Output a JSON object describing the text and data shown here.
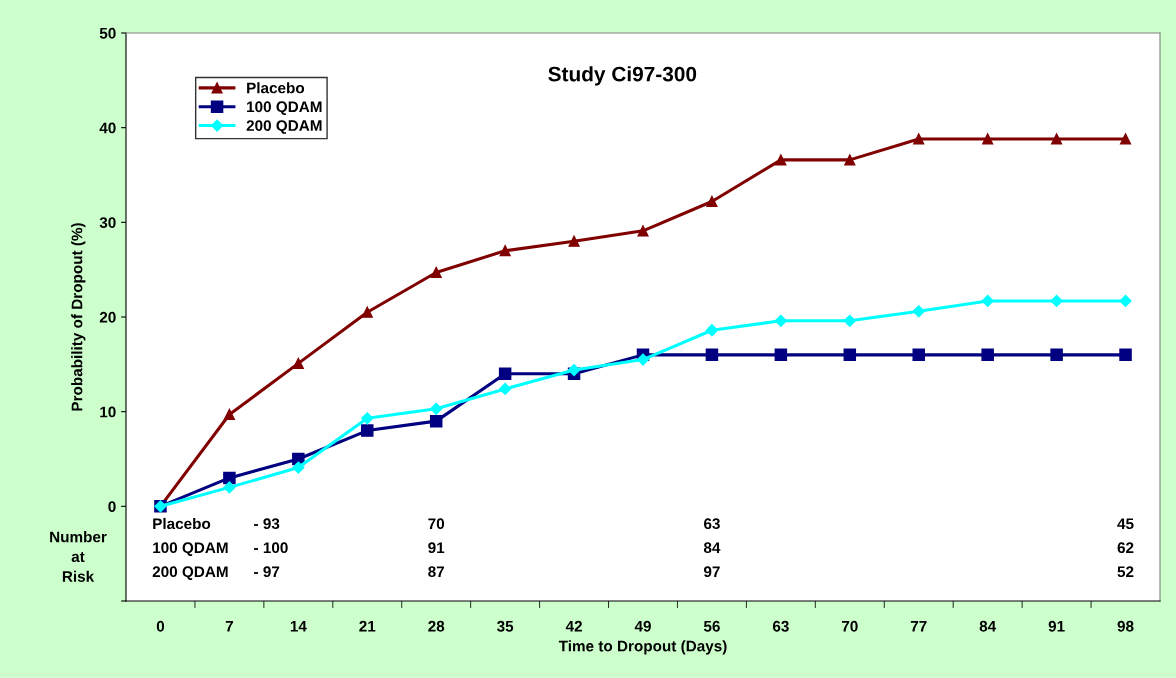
{
  "chart_data": {
    "type": "line",
    "title": "Study Ci97-300",
    "xlabel": "Time to Dropout (Days)",
    "ylabel": "Probability of Dropout (%)",
    "categories": [
      "0",
      "7",
      "14",
      "21",
      "28",
      "35",
      "42",
      "49",
      "56",
      "63",
      "70",
      "77",
      "84",
      "91",
      "98"
    ],
    "series": [
      {
        "name": "Placebo",
        "color": "#800000",
        "marker": "triangle",
        "values": [
          0,
          9.7,
          15.1,
          20.5,
          24.7,
          27.0,
          28.0,
          29.1,
          32.2,
          36.6,
          36.6,
          38.8,
          38.8,
          38.8,
          38.8
        ]
      },
      {
        "name": "100 QDAM",
        "color": "#000080",
        "marker": "square",
        "values": [
          0,
          3.0,
          5.0,
          8.0,
          9.0,
          14.0,
          14.0,
          16.0,
          16.0,
          16.0,
          16.0,
          16.0,
          16.0,
          16.0,
          16.0
        ]
      },
      {
        "name": "200 QDAM",
        "color": "#00ffff",
        "marker": "diamond",
        "values": [
          0,
          2.0,
          4.1,
          9.3,
          10.3,
          12.4,
          14.4,
          15.5,
          18.6,
          19.6,
          19.6,
          20.6,
          21.7,
          21.7,
          21.7
        ]
      }
    ],
    "ylim": [
      -10,
      50
    ],
    "yticks": [
      {
        "value": -10,
        "label": null
      },
      0,
      10,
      20,
      30,
      40,
      50
    ],
    "grid": false,
    "legend": "top left",
    "line_style": "solid",
    "annotations": [
      "Number\nat\nRisk",
      "Placebo",
      "- 93",
      "70",
      "63",
      "45",
      "100 QDAM",
      "- 100",
      "91",
      "84",
      "62",
      "200 QDAM",
      "- 97",
      "87",
      "97",
      "52"
    ]
  }
}
